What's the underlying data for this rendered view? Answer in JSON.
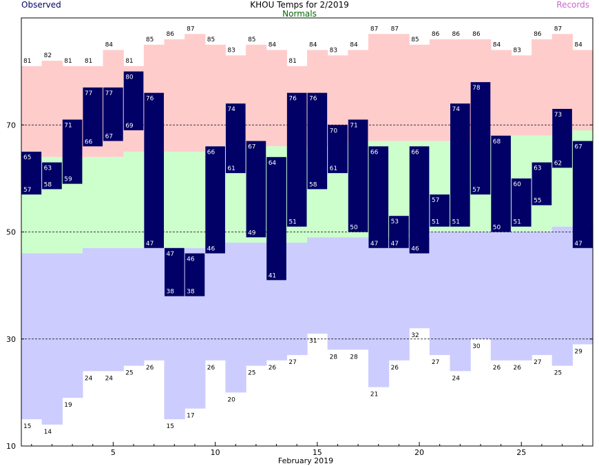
{
  "chart_data": {
    "type": "bar",
    "title": "KHOU Temps for 2/2019",
    "legend": {
      "observed": "Observed",
      "normals": "Normals",
      "records": "Records"
    },
    "xlabel": "February 2019",
    "x": [
      1,
      2,
      3,
      4,
      5,
      6,
      7,
      8,
      9,
      10,
      11,
      12,
      13,
      14,
      15,
      16,
      17,
      18,
      19,
      20,
      21,
      22,
      23,
      24,
      25,
      26,
      27,
      28
    ],
    "xticks": [
      5,
      10,
      15,
      20,
      25
    ],
    "xlim": [
      0.5,
      28.5
    ],
    "ylim": [
      10,
      90
    ],
    "yticks": [
      10,
      30,
      50,
      70
    ],
    "grid_lines": [
      30,
      50,
      70
    ],
    "series": [
      {
        "name": "Record High",
        "values": [
          81,
          82,
          81,
          81,
          84,
          81,
          85,
          86,
          87,
          85,
          83,
          85,
          84,
          81,
          84,
          83,
          84,
          87,
          87,
          85,
          86,
          86,
          86,
          84,
          83,
          86,
          87,
          84
        ]
      },
      {
        "name": "Normal High",
        "values": [
          null,
          null,
          null,
          null,
          null,
          null,
          null,
          null,
          null,
          null,
          null,
          null,
          null,
          null,
          null,
          null,
          null,
          null,
          null,
          null,
          null,
          null,
          null,
          null,
          null,
          null,
          null,
          null
        ]
      },
      {
        "name": "Normal Low",
        "values": [
          null,
          null,
          null,
          null,
          null,
          null,
          null,
          null,
          null,
          null,
          null,
          null,
          null,
          null,
          null,
          null,
          null,
          null,
          null,
          null,
          null,
          null,
          null,
          null,
          null,
          null,
          null,
          null
        ]
      },
      {
        "name": "Record Low",
        "values": [
          15,
          14,
          19,
          24,
          24,
          25,
          26,
          15,
          17,
          26,
          20,
          25,
          26,
          27,
          31,
          28,
          28,
          21,
          26,
          32,
          27,
          24,
          30,
          26,
          26,
          27,
          25,
          29
        ]
      },
      {
        "name": "Observed High",
        "values": [
          65,
          63,
          71,
          77,
          77,
          80,
          76,
          47,
          46,
          66,
          74,
          67,
          64,
          76,
          76,
          70,
          71,
          66,
          53,
          66,
          57,
          74,
          78,
          68,
          60,
          63,
          73,
          67
        ]
      },
      {
        "name": "Observed Low",
        "values": [
          57,
          58,
          59,
          66,
          67,
          69,
          47,
          38,
          38,
          46,
          61,
          49,
          41,
          51,
          58,
          61,
          50,
          47,
          47,
          46,
          51,
          51,
          57,
          50,
          51,
          55,
          62,
          47
        ]
      }
    ],
    "normal_high_values": [
      64,
      64,
      64,
      64,
      64,
      65,
      65,
      65,
      65,
      66,
      66,
      66,
      66,
      66,
      66,
      66,
      67,
      67,
      67,
      67,
      67,
      67,
      67,
      68,
      68,
      68,
      68,
      69
    ],
    "normal_low_values": [
      46,
      46,
      46,
      47,
      47,
      47,
      47,
      47,
      47,
      48,
      48,
      48,
      48,
      48,
      49,
      49,
      49,
      49,
      49,
      49,
      50,
      50,
      50,
      50,
      50,
      50,
      51,
      51
    ],
    "colors": {
      "record_fill": "#ffcccc",
      "normal_fill": "#ccffcc",
      "low_fill": "#ccccff",
      "observed_bar": "#000066",
      "observed_title": "#000066",
      "normals_title": "#006600",
      "records_title": "#cc66cc",
      "grid": "#000000"
    }
  }
}
